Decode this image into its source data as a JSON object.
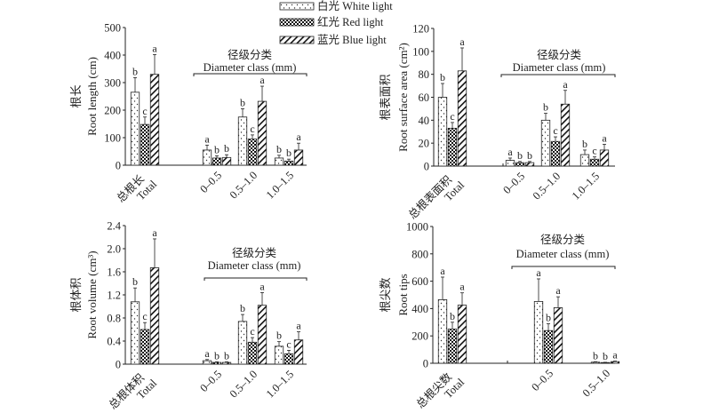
{
  "legend": {
    "items": [
      {
        "key": "white",
        "label": "白光 White light",
        "pattern": "dots"
      },
      {
        "key": "red",
        "label": "红光 Red light",
        "pattern": "checker"
      },
      {
        "key": "blue",
        "label": "蓝光 Blue light",
        "pattern": "hatch"
      }
    ],
    "placement": "top-center"
  },
  "chart_data": [
    {
      "type": "bar",
      "ylabel_cn": "根长",
      "ylabel_en": "Root length (cm)",
      "ylim": [
        0,
        500
      ],
      "yticks": [
        0,
        100,
        200,
        300,
        400,
        500
      ],
      "ytick_labels": [
        "0",
        "100",
        "200",
        "300",
        "400",
        "500"
      ],
      "group_title_cn": "径级分类",
      "group_title_en": "Diameter class (mm)",
      "categories": [
        {
          "label_cn": "总根长",
          "label_en": "Total"
        },
        {
          "label_cn": "",
          "label_en": "0–0.5"
        },
        {
          "label_cn": "",
          "label_en": "0.5–1.0"
        },
        {
          "label_cn": "",
          "label_en": "1.0–1.5"
        }
      ],
      "series": [
        {
          "name": "White light",
          "values": [
            265,
            55,
            175,
            26
          ],
          "errors": [
            53,
            18,
            30,
            10
          ],
          "letters": [
            "b",
            "a",
            "b",
            "b"
          ]
        },
        {
          "name": "Red light",
          "values": [
            148,
            26,
            95,
            15
          ],
          "errors": [
            27,
            8,
            15,
            7
          ],
          "letters": [
            "c",
            "b",
            "c",
            "b"
          ]
        },
        {
          "name": "Blue light",
          "values": [
            330,
            28,
            232,
            55
          ],
          "errors": [
            72,
            10,
            55,
            25
          ],
          "letters": [
            "a",
            "b",
            "a",
            "a"
          ]
        }
      ]
    },
    {
      "type": "bar",
      "ylabel_cn": "根表面积",
      "ylabel_en": "Root surface area (cm²)",
      "ylim": [
        0,
        120
      ],
      "yticks": [
        0,
        20,
        40,
        60,
        80,
        100,
        120
      ],
      "ytick_labels": [
        "0",
        "20",
        "40",
        "60",
        "80",
        "100",
        "120"
      ],
      "group_title_cn": "径级分类",
      "group_title_en": "Diameter class (mm)",
      "categories": [
        {
          "label_cn": "总根表面积",
          "label_en": "Total"
        },
        {
          "label_cn": "",
          "label_en": "0–0.5"
        },
        {
          "label_cn": "",
          "label_en": "0.5–1.0"
        },
        {
          "label_cn": "",
          "label_en": "1.0–1.5"
        }
      ],
      "series": [
        {
          "name": "White light",
          "values": [
            60,
            5,
            40,
            10
          ],
          "errors": [
            12,
            2,
            6,
            4
          ],
          "letters": [
            "b",
            "a",
            "b",
            "b"
          ]
        },
        {
          "name": "Red light",
          "values": [
            33,
            3,
            21.5,
            6
          ],
          "errors": [
            5,
            1,
            4,
            2
          ],
          "letters": [
            "c",
            "b",
            "c",
            "c"
          ]
        },
        {
          "name": "Blue light",
          "values": [
            83,
            3,
            54,
            14
          ],
          "errors": [
            20,
            1,
            12,
            5
          ],
          "letters": [
            "a",
            "b",
            "a",
            "a"
          ]
        }
      ]
    },
    {
      "type": "bar",
      "ylabel_cn": "根体积",
      "ylabel_en": "Root volume (cm³)",
      "ylim": [
        0,
        2.4
      ],
      "yticks": [
        0,
        0.4,
        0.8,
        1.2,
        1.6,
        2.0,
        2.4
      ],
      "ytick_labels": [
        "0",
        "0.4",
        "0.8",
        "1.2",
        "1.6",
        "2.0",
        "2.4"
      ],
      "group_title_cn": "径级分类",
      "group_title_en": "Diameter class (mm)",
      "categories": [
        {
          "label_cn": "总根体积",
          "label_en": "Total"
        },
        {
          "label_cn": "",
          "label_en": "0–0.5"
        },
        {
          "label_cn": "",
          "label_en": "0.5–1.0"
        },
        {
          "label_cn": "",
          "label_en": "1.0–1.5"
        }
      ],
      "series": [
        {
          "name": "White light",
          "values": [
            1.08,
            0.06,
            0.74,
            0.31
          ],
          "errors": [
            0.24,
            0.02,
            0.12,
            0.08
          ],
          "letters": [
            "b",
            "a",
            "b",
            "b"
          ]
        },
        {
          "name": "Red light",
          "values": [
            0.6,
            0.03,
            0.38,
            0.18
          ],
          "errors": [
            0.12,
            0.01,
            0.08,
            0.06
          ],
          "letters": [
            "c",
            "b",
            "c",
            "c"
          ]
        },
        {
          "name": "Blue light",
          "values": [
            1.67,
            0.03,
            1.02,
            0.42
          ],
          "errors": [
            0.5,
            0.01,
            0.22,
            0.14
          ],
          "letters": [
            "a",
            "b",
            "a",
            "a"
          ]
        }
      ]
    },
    {
      "type": "bar",
      "ylabel_cn": "根尖数",
      "ylabel_en": "Root tips",
      "ylim": [
        0,
        1000
      ],
      "yticks": [
        0,
        200,
        400,
        600,
        800,
        1000
      ],
      "ytick_labels": [
        "0",
        "200",
        "400",
        "600",
        "800",
        "1000"
      ],
      "group_title_cn": "径级分类",
      "group_title_en": "Diameter class (mm)",
      "categories": [
        {
          "label_cn": "总根尖数",
          "label_en": "Total"
        },
        {
          "label_cn": "",
          "label_en": "0–0.5"
        },
        {
          "label_cn": "",
          "label_en": "0.5–1.0"
        }
      ],
      "series": [
        {
          "name": "White light",
          "values": [
            465,
            452,
            8
          ],
          "errors": [
            165,
            165,
            3
          ],
          "letters": [
            "a",
            "a",
            "b"
          ]
        },
        {
          "name": "Red light",
          "values": [
            250,
            239,
            5
          ],
          "errors": [
            50,
            50,
            2
          ],
          "letters": [
            "b",
            "b",
            "b"
          ]
        },
        {
          "name": "Blue light",
          "values": [
            425,
            406,
            12
          ],
          "errors": [
            90,
            80,
            4
          ],
          "letters": [
            "a",
            "a",
            "a"
          ]
        }
      ]
    }
  ]
}
